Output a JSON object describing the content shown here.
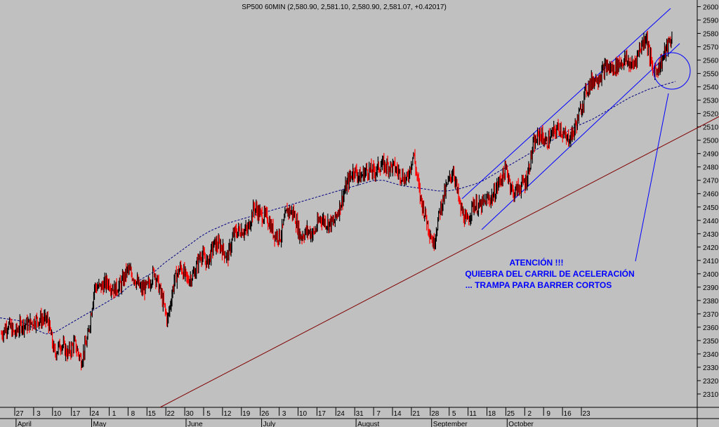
{
  "chart_data": {
    "type": "candlestick",
    "title": "SP500 60MIN (2,580.90, 2,581.10, 2,580.90, 2,581.07, +0.42017)",
    "grid": false,
    "colors": {
      "background": "#c0c0c0",
      "up_candle": "#000000",
      "down_candle": "#ff0000",
      "trend_lines": "#0000ff",
      "support_line": "#800000",
      "moving_average": "#000080"
    },
    "y_axis": {
      "range": [
        2300,
        2605
      ],
      "tick_labels": [
        "2310",
        "2320",
        "2330",
        "2340",
        "2350",
        "2360",
        "2370",
        "2380",
        "2390",
        "2400",
        "2410",
        "2420",
        "2430",
        "2440",
        "2450",
        "2460",
        "2470",
        "2480",
        "2490",
        "2500",
        "2510",
        "2520",
        "2530",
        "2540",
        "2550",
        "2560",
        "2570",
        "2580",
        "2590",
        "2600"
      ]
    },
    "x_axis": {
      "day_labels": [
        "27",
        "3",
        "10",
        "17",
        "24",
        "1",
        "8",
        "15",
        "22",
        "30",
        "5",
        "12",
        "19",
        "26",
        "3",
        "10",
        "17",
        "24",
        "31",
        "7",
        "14",
        "21",
        "28",
        "5",
        "11",
        "18",
        "25",
        "2",
        "9",
        "16",
        "23"
      ],
      "month_labels": [
        "April",
        "May",
        "June",
        "July",
        "August",
        "September",
        "October"
      ]
    },
    "series": [
      {
        "values": [
          2355,
          2362,
          2355,
          2362,
          2362,
          2365,
          2366,
          2365,
          2340,
          2348,
          2340,
          2348,
          2335,
          2352,
          2390,
          2390,
          2394,
          2388,
          2392,
          2403,
          2397,
          2388,
          2390,
          2402,
          2385,
          2365,
          2395,
          2405,
          2395,
          2400,
          2415,
          2408,
          2422,
          2421,
          2412,
          2430,
          2433,
          2432,
          2450,
          2444,
          2442,
          2430,
          2428,
          2448,
          2445,
          2428,
          2432,
          2430,
          2442,
          2438,
          2438,
          2452,
          2467,
          2478,
          2472,
          2478,
          2476,
          2481,
          2481,
          2480,
          2475,
          2470,
          2490,
          2458,
          2440,
          2422,
          2448,
          2465,
          2478,
          2450,
          2438,
          2452,
          2450,
          2455,
          2458,
          2470,
          2478,
          2460,
          2465,
          2470,
          2495,
          2505,
          2498,
          2505,
          2510,
          2500,
          2505,
          2520,
          2538,
          2545,
          2548,
          2555,
          2553,
          2558,
          2560,
          2555,
          2568,
          2578,
          2552,
          2555,
          2568,
          2578
        ]
      },
      {
        "values": [
          2367,
          2366,
          2365,
          2362,
          2358,
          2355,
          2356,
          2360,
          2364,
          2368,
          2372,
          2376,
          2380,
          2384,
          2390,
          2394,
          2398,
          2402,
          2408,
          2413,
          2418,
          2423,
          2428,
          2432,
          2435,
          2438,
          2440,
          2442,
          2444,
          2446,
          2448,
          2450,
          2452,
          2454,
          2456,
          2458,
          2460,
          2462,
          2464,
          2466,
          2468,
          2470,
          2470,
          2468,
          2466,
          2465,
          2464,
          2463,
          2462,
          2462,
          2463,
          2465,
          2467,
          2470,
          2474,
          2478,
          2482,
          2486,
          2490,
          2494,
          2498,
          2502,
          2506,
          2510,
          2513,
          2516,
          2520,
          2524,
          2528,
          2532,
          2535,
          2538,
          2540,
          2542,
          2544
        ]
      }
    ],
    "annotations": {
      "lines": [
        "ATENCIÓN !!!",
        "QUIEBRA DEL CARRIL DE ACELERACIÓN",
        "... TRAMPA PARA BARRER CORTOS"
      ]
    }
  }
}
